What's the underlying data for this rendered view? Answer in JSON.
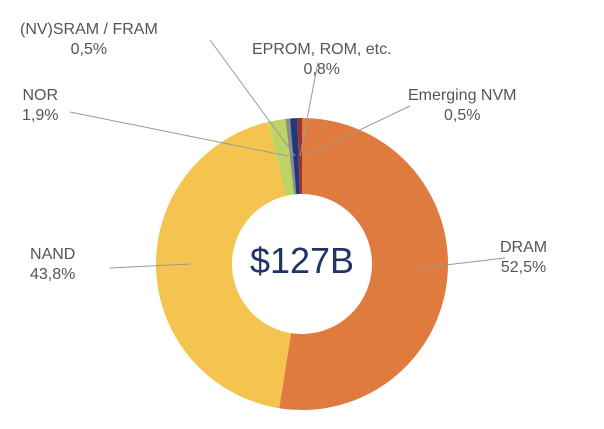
{
  "chart_data": {
    "type": "pie",
    "donut": true,
    "center_label": "$127B",
    "slices": [
      {
        "name": "DRAM",
        "value": 52.5,
        "label": "52,5%",
        "color": "#E07B3F"
      },
      {
        "name": "NAND",
        "value": 43.8,
        "label": "43,8%",
        "color": "#F5C350"
      },
      {
        "name": "NOR",
        "value": 1.9,
        "label": "1,9%",
        "color": "#BDD462"
      },
      {
        "name": "(NV)SRAM / FRAM",
        "value": 0.5,
        "label": "0,5%",
        "color": "#8C8C8C"
      },
      {
        "name": "EPROM, ROM, etc.",
        "value": 0.8,
        "label": "0,8%",
        "color": "#1F3A7A"
      },
      {
        "name": "Emerging NVM",
        "value": 0.5,
        "label": "0,5%",
        "color": "#A3312B"
      }
    ]
  }
}
